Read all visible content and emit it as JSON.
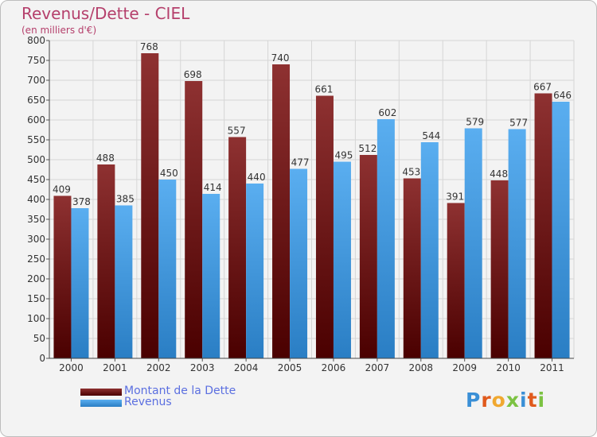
{
  "title": "Revenus/Dette - CIEL",
  "subtitle": "(en milliers d'€)",
  "logo_text": "Proxiti",
  "colors": {
    "debt_top": "#8e3131",
    "debt_bottom": "#4a0000",
    "revenue_top": "#5aaef0",
    "revenue_bottom": "#2a7ec4",
    "title": "#b5406c",
    "legend_text": "#5b6fe0"
  },
  "legend": [
    {
      "label": "Montant de la Dette"
    },
    {
      "label": "Revenus"
    }
  ],
  "chart_data": {
    "type": "bar",
    "title": "Revenus/Dette - CIEL",
    "subtitle": "(en milliers d'€)",
    "categories": [
      "2000",
      "2001",
      "2002",
      "2003",
      "2004",
      "2005",
      "2006",
      "2007",
      "2008",
      "2009",
      "2010",
      "2011"
    ],
    "series": [
      {
        "name": "Montant de la Dette",
        "values": [
          409,
          488,
          768,
          698,
          557,
          740,
          661,
          512,
          453,
          391,
          448,
          667
        ]
      },
      {
        "name": "Revenus",
        "values": [
          378,
          385,
          450,
          414,
          440,
          477,
          495,
          602,
          544,
          579,
          577,
          646
        ]
      }
    ],
    "ylim": [
      0,
      800
    ],
    "yticks": [
      0,
      50,
      100,
      150,
      200,
      250,
      300,
      350,
      400,
      450,
      500,
      550,
      600,
      650,
      700,
      750,
      800
    ],
    "grid": true,
    "legend_position": "bottom-left"
  }
}
